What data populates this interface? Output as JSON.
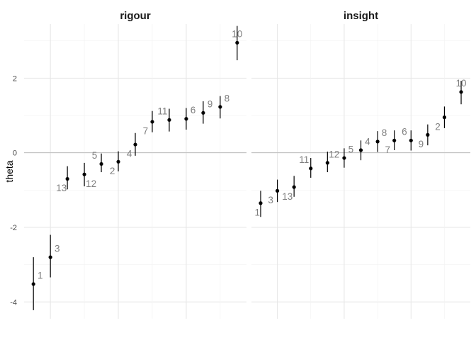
{
  "chart_data": {
    "type": "scatter",
    "ylabel": "theta",
    "ylim": [
      -4.45,
      3.45
    ],
    "yticks": [
      -4,
      -2,
      0,
      2
    ],
    "ytick_labels": [
      "-4",
      "-2",
      "0",
      "2"
    ],
    "hline": 0,
    "panels": [
      {
        "title": "rigour",
        "xlim": [
          0.45,
          13.55
        ],
        "points": [
          {
            "id": "1",
            "x": 1,
            "y": -3.52,
            "lo": -4.22,
            "hi": -2.8,
            "label_dx": 0.4,
            "label_dy": 0.24
          },
          {
            "id": "3",
            "x": 2,
            "y": -2.8,
            "lo": -3.34,
            "hi": -2.2,
            "label_dx": 0.4,
            "label_dy": 0.24
          },
          {
            "id": "13",
            "x": 3,
            "y": -0.7,
            "lo": -0.98,
            "hi": -0.36,
            "label_dx": -0.35,
            "label_dy": -0.24
          },
          {
            "id": "12",
            "x": 4,
            "y": -0.58,
            "lo": -0.9,
            "hi": -0.27,
            "label_dx": 0.4,
            "label_dy": -0.24
          },
          {
            "id": "5",
            "x": 5,
            "y": -0.3,
            "lo": -0.52,
            "hi": -0.02,
            "label_dx": -0.4,
            "label_dy": 0.24
          },
          {
            "id": "2",
            "x": 6,
            "y": -0.24,
            "lo": -0.5,
            "hi": 0.04,
            "label_dx": -0.35,
            "label_dy": -0.24
          },
          {
            "id": "4",
            "x": 7,
            "y": 0.22,
            "lo": -0.08,
            "hi": 0.53,
            "label_dx": -0.35,
            "label_dy": -0.24
          },
          {
            "id": "7",
            "x": 8,
            "y": 0.83,
            "lo": 0.55,
            "hi": 1.12,
            "label_dx": -0.4,
            "label_dy": -0.24
          },
          {
            "id": "11",
            "x": 9,
            "y": 0.88,
            "lo": 0.57,
            "hi": 1.18,
            "label_dx": -0.4,
            "label_dy": 0.24
          },
          {
            "id": "6",
            "x": 10,
            "y": 0.91,
            "lo": 0.62,
            "hi": 1.2,
            "label_dx": 0.4,
            "label_dy": 0.24
          },
          {
            "id": "9",
            "x": 11,
            "y": 1.07,
            "lo": 0.78,
            "hi": 1.38,
            "label_dx": 0.4,
            "label_dy": 0.24
          },
          {
            "id": "8",
            "x": 12,
            "y": 1.23,
            "lo": 0.92,
            "hi": 1.52,
            "label_dx": 0.4,
            "label_dy": 0.24
          },
          {
            "id": "10",
            "x": 13,
            "y": 2.95,
            "lo": 2.48,
            "hi": 3.4,
            "label_dx": 0.0,
            "label_dy": 0.24
          }
        ]
      },
      {
        "title": "insight",
        "xlim": [
          0.45,
          13.55
        ],
        "points": [
          {
            "id": "1",
            "x": 1,
            "y": -1.35,
            "lo": -1.72,
            "hi": -1.02,
            "label_dx": -0.2,
            "label_dy": -0.24
          },
          {
            "id": "3",
            "x": 2,
            "y": -1.02,
            "lo": -1.32,
            "hi": -0.72,
            "label_dx": -0.4,
            "label_dy": -0.24
          },
          {
            "id": "13",
            "x": 3,
            "y": -0.92,
            "lo": -1.18,
            "hi": -0.62,
            "label_dx": -0.4,
            "label_dy": -0.24
          },
          {
            "id": "11",
            "x": 4,
            "y": -0.42,
            "lo": -0.67,
            "hi": -0.14,
            "label_dx": -0.4,
            "label_dy": 0.24
          },
          {
            "id": "12",
            "x": 5,
            "y": -0.27,
            "lo": -0.52,
            "hi": 0.03,
            "label_dx": 0.4,
            "label_dy": 0.24
          },
          {
            "id": "5",
            "x": 6,
            "y": -0.14,
            "lo": -0.4,
            "hi": 0.12,
            "label_dx": 0.4,
            "label_dy": 0.24
          },
          {
            "id": "4",
            "x": 7,
            "y": 0.07,
            "lo": -0.2,
            "hi": 0.33,
            "label_dx": 0.4,
            "label_dy": 0.24
          },
          {
            "id": "8",
            "x": 8,
            "y": 0.3,
            "lo": 0.02,
            "hi": 0.58,
            "label_dx": 0.4,
            "label_dy": 0.24
          },
          {
            "id": "7",
            "x": 9,
            "y": 0.33,
            "lo": 0.07,
            "hi": 0.6,
            "label_dx": -0.4,
            "label_dy": -0.24
          },
          {
            "id": "6",
            "x": 10,
            "y": 0.33,
            "lo": 0.06,
            "hi": 0.6,
            "label_dx": -0.4,
            "label_dy": 0.24
          },
          {
            "id": "9",
            "x": 11,
            "y": 0.48,
            "lo": 0.2,
            "hi": 0.76,
            "label_dx": -0.4,
            "label_dy": -0.24
          },
          {
            "id": "2",
            "x": 12,
            "y": 0.95,
            "lo": 0.66,
            "hi": 1.24,
            "label_dx": -0.4,
            "label_dy": -0.24
          },
          {
            "id": "10",
            "x": 13,
            "y": 1.63,
            "lo": 1.3,
            "hi": 1.93,
            "label_dx": 0.0,
            "label_dy": 0.24
          }
        ]
      }
    ]
  }
}
